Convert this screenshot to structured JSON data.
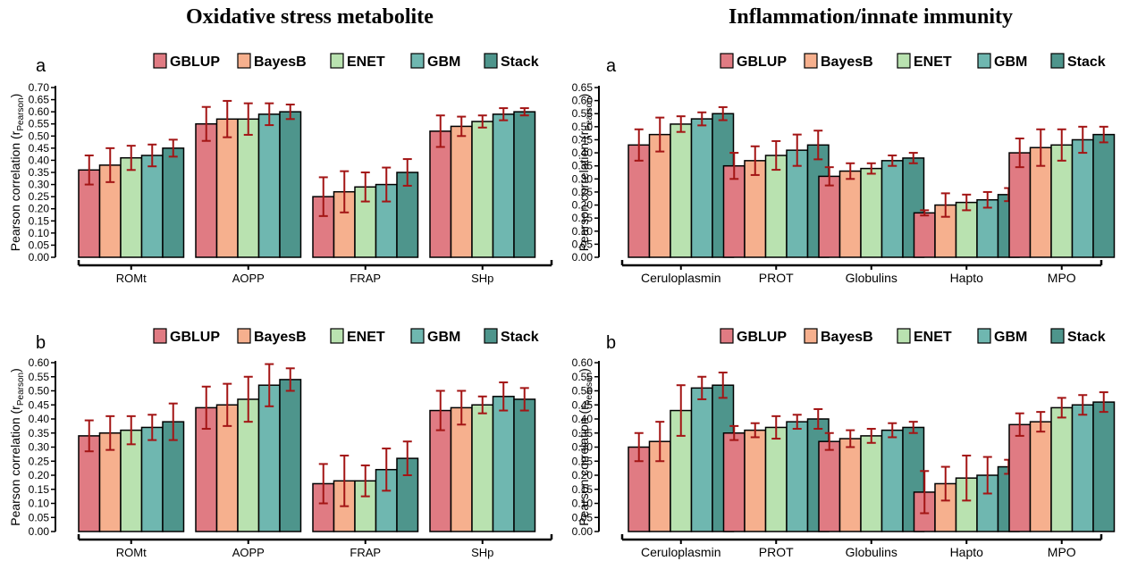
{
  "titles": {
    "left": "Oxidative stress metabolite",
    "right": "Inflammation/innate immunity"
  },
  "colors": {
    "GBLUP": "#e07b83",
    "BayesB": "#f6b08e",
    "ENET": "#b9e2b0",
    "GBM": "#6fb7b0",
    "Stack": "#4e958c",
    "error_bar": "#a31515"
  },
  "legend": [
    "GBLUP",
    "BayesB",
    "ENET",
    "GBM",
    "Stack"
  ],
  "chart_data": [
    {
      "type": "bar",
      "panel_label": "a",
      "ylabel": "Pearson correlation (r",
      "ylabel_sub": "Pearson",
      "ylabel_end": ")",
      "ylim": [
        0,
        0.7
      ],
      "ytick_step": 0.05,
      "categories": [
        "ROMt",
        "AOPP",
        "FRAP",
        "SHp"
      ],
      "series": [
        {
          "name": "GBLUP",
          "values": [
            0.36,
            0.55,
            0.25,
            0.52
          ],
          "errors": [
            0.06,
            0.07,
            0.08,
            0.065
          ]
        },
        {
          "name": "BayesB",
          "values": [
            0.38,
            0.57,
            0.27,
            0.54
          ],
          "errors": [
            0.07,
            0.075,
            0.085,
            0.04
          ]
        },
        {
          "name": "ENET",
          "values": [
            0.41,
            0.57,
            0.29,
            0.56
          ],
          "errors": [
            0.05,
            0.065,
            0.06,
            0.025
          ]
        },
        {
          "name": "GBM",
          "values": [
            0.42,
            0.59,
            0.3,
            0.59
          ],
          "errors": [
            0.045,
            0.045,
            0.07,
            0.025
          ]
        },
        {
          "name": "Stack",
          "values": [
            0.45,
            0.6,
            0.35,
            0.6
          ],
          "errors": [
            0.035,
            0.03,
            0.055,
            0.015
          ]
        }
      ]
    },
    {
      "type": "bar",
      "panel_label": "a",
      "ylabel": "Pearson correlation (r",
      "ylabel_sub": "Pearson",
      "ylabel_end": ")",
      "ylim": [
        0,
        0.65
      ],
      "ytick_step": 0.05,
      "categories": [
        "Ceruloplasmin",
        "PROT",
        "Globulins",
        "Hapto",
        "MPO"
      ],
      "series": [
        {
          "name": "GBLUP",
          "values": [
            0.43,
            0.35,
            0.31,
            0.17,
            0.4
          ],
          "errors": [
            0.06,
            0.05,
            0.035,
            0.01,
            0.055
          ]
        },
        {
          "name": "BayesB",
          "values": [
            0.47,
            0.37,
            0.33,
            0.2,
            0.42
          ],
          "errors": [
            0.065,
            0.055,
            0.03,
            0.045,
            0.07
          ]
        },
        {
          "name": "ENET",
          "values": [
            0.51,
            0.39,
            0.34,
            0.21,
            0.43
          ],
          "errors": [
            0.03,
            0.055,
            0.02,
            0.03,
            0.06
          ]
        },
        {
          "name": "GBM",
          "values": [
            0.53,
            0.41,
            0.37,
            0.22,
            0.45
          ],
          "errors": [
            0.025,
            0.06,
            0.02,
            0.03,
            0.05
          ]
        },
        {
          "name": "Stack",
          "values": [
            0.55,
            0.43,
            0.38,
            0.24,
            0.47
          ],
          "errors": [
            0.025,
            0.055,
            0.02,
            0.025,
            0.03
          ]
        }
      ]
    },
    {
      "type": "bar",
      "panel_label": "b",
      "ylabel": "Pearson correlation (r",
      "ylabel_sub": "Pearson",
      "ylabel_end": ")",
      "ylim": [
        0,
        0.6
      ],
      "ytick_step": 0.05,
      "categories": [
        "ROMt",
        "AOPP",
        "FRAP",
        "SHp"
      ],
      "series": [
        {
          "name": "GBLUP",
          "values": [
            0.34,
            0.44,
            0.17,
            0.43
          ],
          "errors": [
            0.055,
            0.075,
            0.07,
            0.07
          ]
        },
        {
          "name": "BayesB",
          "values": [
            0.35,
            0.45,
            0.18,
            0.44
          ],
          "errors": [
            0.06,
            0.075,
            0.09,
            0.06
          ]
        },
        {
          "name": "ENET",
          "values": [
            0.36,
            0.47,
            0.18,
            0.45
          ],
          "errors": [
            0.05,
            0.08,
            0.055,
            0.03
          ]
        },
        {
          "name": "GBM",
          "values": [
            0.37,
            0.52,
            0.22,
            0.48
          ],
          "errors": [
            0.045,
            0.075,
            0.075,
            0.05
          ]
        },
        {
          "name": "Stack",
          "values": [
            0.39,
            0.54,
            0.26,
            0.47
          ],
          "errors": [
            0.065,
            0.04,
            0.06,
            0.04
          ]
        }
      ]
    },
    {
      "type": "bar",
      "panel_label": "b",
      "ylabel": "Pearson correlation (r",
      "ylabel_sub": "Pearson",
      "ylabel_end": ")",
      "ylim": [
        0,
        0.6
      ],
      "ytick_step": 0.05,
      "categories": [
        "Ceruloplasmin",
        "PROT",
        "Globulins",
        "Hapto",
        "MPO"
      ],
      "series": [
        {
          "name": "GBLUP",
          "values": [
            0.3,
            0.35,
            0.32,
            0.14,
            0.38
          ],
          "errors": [
            0.05,
            0.025,
            0.03,
            0.075,
            0.04
          ]
        },
        {
          "name": "BayesB",
          "values": [
            0.32,
            0.36,
            0.33,
            0.17,
            0.39
          ],
          "errors": [
            0.07,
            0.025,
            0.03,
            0.06,
            0.035
          ]
        },
        {
          "name": "ENET",
          "values": [
            0.43,
            0.37,
            0.34,
            0.19,
            0.44
          ],
          "errors": [
            0.09,
            0.04,
            0.025,
            0.08,
            0.035
          ]
        },
        {
          "name": "GBM",
          "values": [
            0.51,
            0.39,
            0.36,
            0.2,
            0.45
          ],
          "errors": [
            0.04,
            0.025,
            0.025,
            0.065,
            0.035
          ]
        },
        {
          "name": "Stack",
          "values": [
            0.52,
            0.4,
            0.37,
            0.23,
            0.46
          ],
          "errors": [
            0.045,
            0.035,
            0.02,
            0.025,
            0.035
          ]
        }
      ]
    }
  ]
}
